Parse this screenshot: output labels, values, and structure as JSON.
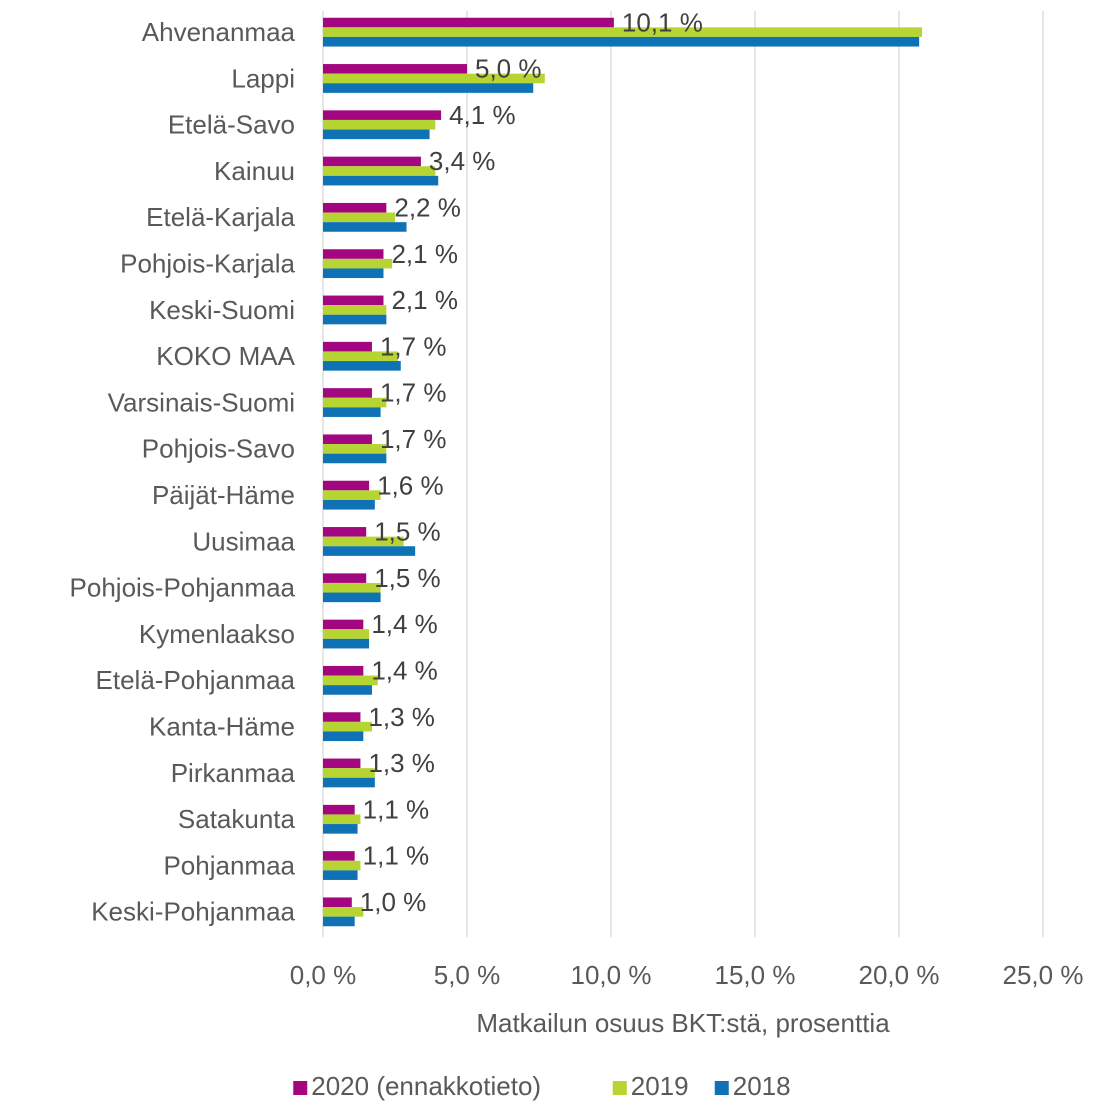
{
  "chart_data": {
    "type": "bar",
    "orientation": "horizontal",
    "x_label": "Matkailun osuus BKT:stä, prosenttia",
    "categories": [
      "Ahvenanmaa",
      "Lappi",
      "Etelä-Savo",
      "Kainuu",
      "Etelä-Karjala",
      "Pohjois-Karjala",
      "Keski-Suomi",
      "KOKO MAA",
      "Varsinais-Suomi",
      "Pohjois-Savo",
      "Päijät-Häme",
      "Uusimaa",
      "Pohjois-Pohjanmaa",
      "Kymenlaakso",
      "Etelä-Pohjanmaa",
      "Kanta-Häme",
      "Pirkanmaa",
      "Satakunta",
      "Pohjanmaa",
      "Keski-Pohjanmaa"
    ],
    "series": [
      {
        "name": "2020 (ennakkotieto)",
        "color": "#a3077f",
        "values": [
          10.1,
          5.0,
          4.1,
          3.4,
          2.2,
          2.1,
          2.1,
          1.7,
          1.7,
          1.7,
          1.6,
          1.5,
          1.5,
          1.4,
          1.4,
          1.3,
          1.3,
          1.1,
          1.1,
          1.0
        ],
        "value_labels": [
          "10,1 %",
          "5,0 %",
          "4,1 %",
          "3,4 %",
          "2,2 %",
          "2,1 %",
          "2,1 %",
          "1,7 %",
          "1,7 %",
          "1,7 %",
          "1,6 %",
          "1,5 %",
          "1,5 %",
          "1,4 %",
          "1,4 %",
          "1,3 %",
          "1,3 %",
          "1,1 %",
          "1,1 %",
          "1,0 %"
        ]
      },
      {
        "name": "2019",
        "color": "#b6d432",
        "values": [
          20.8,
          7.7,
          3.9,
          3.9,
          2.5,
          2.4,
          2.2,
          2.6,
          2.2,
          2.2,
          2.0,
          2.8,
          2.0,
          1.6,
          1.9,
          1.7,
          1.8,
          1.3,
          1.3,
          1.4
        ]
      },
      {
        "name": "2018",
        "color": "#0f72b4",
        "values": [
          20.7,
          7.3,
          3.7,
          4.0,
          2.9,
          2.1,
          2.2,
          2.7,
          2.0,
          2.2,
          1.8,
          3.2,
          2.0,
          1.6,
          1.7,
          1.4,
          1.8,
          1.2,
          1.2,
          1.1
        ]
      }
    ],
    "xlim": [
      0,
      25
    ],
    "xticks": [
      {
        "value": 0,
        "label": "0,0 %"
      },
      {
        "value": 5,
        "label": "5,0 %"
      },
      {
        "value": 10,
        "label": "10,0 %"
      },
      {
        "value": 15,
        "label": "15,0 %"
      },
      {
        "value": 20,
        "label": "20,0 %"
      },
      {
        "value": 25,
        "label": "25,0 %"
      }
    ],
    "grid": true,
    "legend": "bottom"
  }
}
